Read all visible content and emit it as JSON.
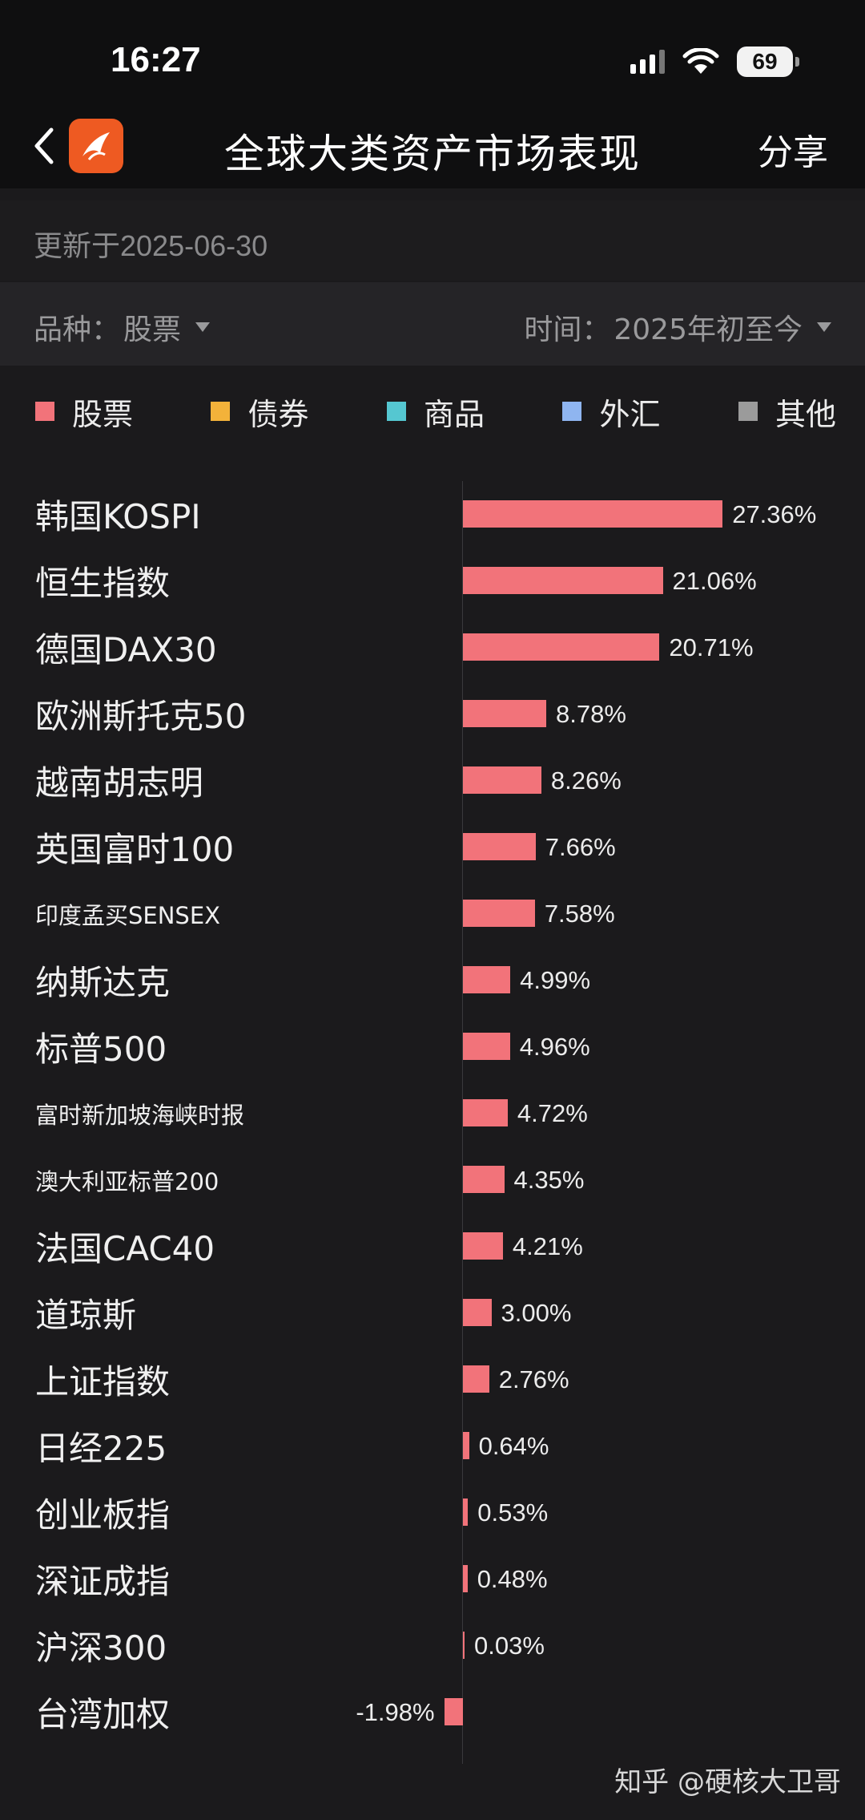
{
  "status_bar": {
    "time": "16:27",
    "battery": "69",
    "icons": [
      "signal-icon",
      "wifi-icon",
      "battery-icon"
    ]
  },
  "nav": {
    "title": "全球大类资产市场表现",
    "share_label": "分享",
    "icons": [
      "back-icon",
      "app-logo"
    ]
  },
  "update": {
    "text": "更新于2025-06-30"
  },
  "filters": {
    "variety_label": "品种：",
    "variety_value": "股票",
    "time_label": "时间：",
    "time_value": "2025年初至今"
  },
  "legend": [
    {
      "label": "股票",
      "color": "#f2737a"
    },
    {
      "label": "债券",
      "color": "#f3b23a"
    },
    {
      "label": "商品",
      "color": "#55c7d1"
    },
    {
      "label": "外汇",
      "color": "#8fb5f0"
    },
    {
      "label": "其他",
      "color": "#9b9b9b"
    }
  ],
  "chart_data": {
    "type": "bar",
    "orientation": "horizontal",
    "series": [
      {
        "name": "股票",
        "color": "#f2737a"
      }
    ],
    "categories": [
      "韩国KOSPI",
      "恒生指数",
      "德国DAX30",
      "欧洲斯托克50",
      "越南胡志明",
      "英国富时100",
      "印度孟买SENSEX",
      "纳斯达克",
      "标普500",
      "富时新加坡海峡时报",
      "澳大利亚标普200",
      "法国CAC40",
      "道琼斯",
      "上证指数",
      "日经225",
      "创业板指",
      "深证成指",
      "沪深300",
      "台湾加权"
    ],
    "values": [
      27.36,
      21.06,
      20.71,
      8.78,
      8.26,
      7.66,
      7.58,
      4.99,
      4.96,
      4.72,
      4.35,
      4.21,
      3.0,
      2.76,
      0.64,
      0.53,
      0.48,
      0.03,
      -1.98
    ],
    "value_labels": [
      "27.36%",
      "21.06%",
      "20.71%",
      "8.78%",
      "8.26%",
      "7.66%",
      "7.58%",
      "4.99%",
      "4.96%",
      "4.72%",
      "4.35%",
      "4.21%",
      "3.00%",
      "2.76%",
      "0.64%",
      "0.53%",
      "0.48%",
      "0.03%",
      "-1.98%"
    ],
    "label_size": [
      "large",
      "large",
      "large",
      "large",
      "large",
      "large",
      "small",
      "large",
      "large",
      "small",
      "small",
      "large",
      "large",
      "large",
      "large",
      "large",
      "large",
      "large",
      "large"
    ],
    "xlim": [
      -1.98,
      27.36
    ],
    "grid": false
  },
  "watermark": {
    "text": "知乎 @硬核大卫哥"
  }
}
